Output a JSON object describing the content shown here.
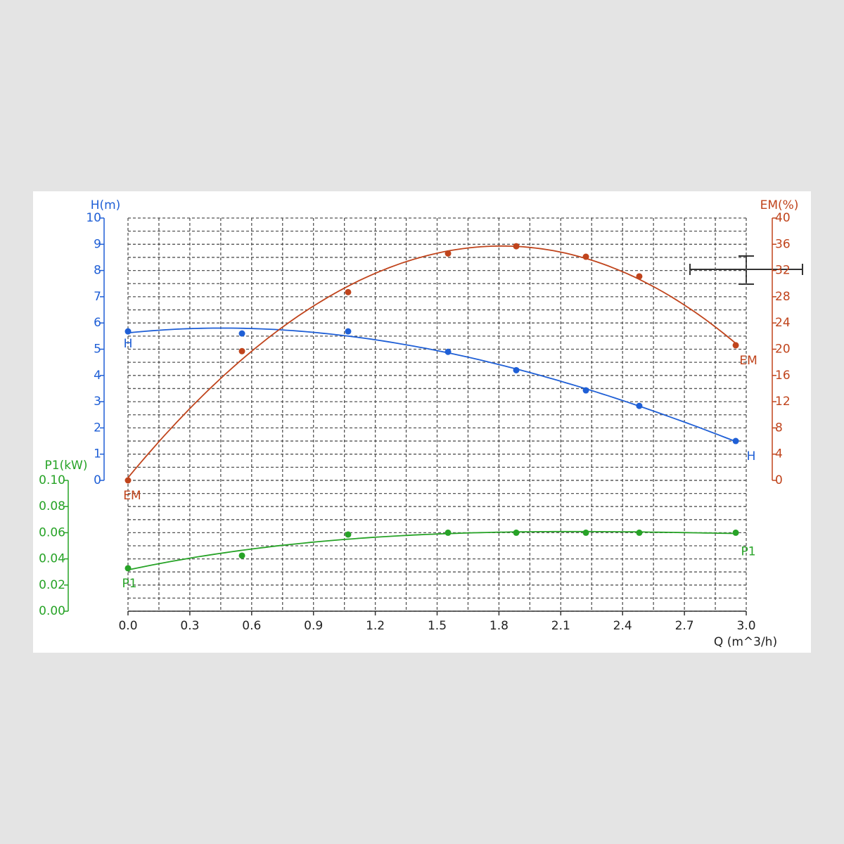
{
  "chart_data": {
    "type": "scatter",
    "x_label": "Q (m^3/h)",
    "y_label": "H(m)",
    "y2_label": "EM(%)",
    "y3_label": "P1(kW)",
    "x": [
      0.0,
      0.553,
      1.068,
      1.553,
      1.884,
      2.222,
      2.481,
      2.949
    ],
    "series": [
      {
        "name": "H",
        "color": "#1f5fd6",
        "axis": "y",
        "values": [
          5.68,
          5.6,
          5.68,
          4.9,
          4.2,
          3.43,
          2.84,
          1.5
        ]
      },
      {
        "name": "EM",
        "color": "#c0441c",
        "axis": "y2",
        "values": [
          0,
          19.7,
          28.7,
          34.6,
          35.7,
          34.1,
          31.1,
          20.6
        ]
      },
      {
        "name": "P1",
        "color": "#27a327",
        "axis": "y3",
        "values": [
          0.0328,
          0.0425,
          0.0586,
          0.06,
          0.06,
          0.06,
          0.06,
          0.06
        ]
      }
    ],
    "trendline": "cubic",
    "grid": true,
    "xlim": [
      0,
      3
    ],
    "xticks": [
      {
        "value": 0,
        "label": "0.0"
      },
      {
        "value": 0.3,
        "label": "0.3"
      },
      {
        "value": 0.6,
        "label": "0.6"
      },
      {
        "value": 0.9,
        "label": "0.9"
      },
      {
        "value": 1.2,
        "label": "1.2"
      },
      {
        "value": 1.5,
        "label": "1.5"
      },
      {
        "value": 1.8,
        "label": "1.8"
      },
      {
        "value": 2.1,
        "label": "2.1"
      },
      {
        "value": 2.4,
        "label": "2.4"
      },
      {
        "value": 2.7,
        "label": "2.7"
      },
      {
        "value": 3,
        "label": "3.0"
      }
    ],
    "ylim": [
      0,
      10
    ],
    "yticks": [
      0,
      1,
      2,
      3,
      4,
      5,
      6,
      7,
      8,
      9,
      10
    ],
    "y2lim": [
      0,
      40
    ],
    "y2ticks": [
      0,
      4,
      8,
      12,
      16,
      20,
      24,
      28,
      32,
      36,
      40
    ],
    "y3lim": [
      0,
      0.1
    ],
    "y3ticks": [
      {
        "value": 0,
        "label": "0.00"
      },
      {
        "value": 0.02,
        "label": "0.02"
      },
      {
        "value": 0.04,
        "label": "0.04"
      },
      {
        "value": 0.06,
        "label": "0.06"
      },
      {
        "value": 0.08,
        "label": "0.08"
      },
      {
        "value": 0.1,
        "label": "0.10"
      }
    ]
  }
}
